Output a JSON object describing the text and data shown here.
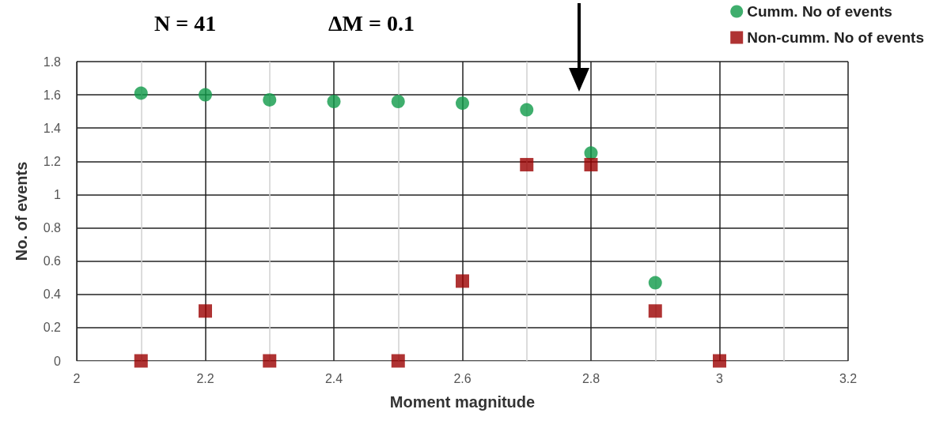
{
  "chart_data": {
    "type": "scatter",
    "xlabel": "Moment magnitude",
    "ylabel": "No. of events",
    "annotations": [
      "N = 41",
      "ΔM = 0.1"
    ],
    "x": [
      2.1,
      2.2,
      2.3,
      2.4,
      2.5,
      2.6,
      2.7,
      2.8,
      2.9,
      3.0
    ],
    "series": [
      {
        "name": "Cumm. No of events",
        "color": "#0f9a48",
        "marker": "circle",
        "values": [
          1.61,
          1.6,
          1.57,
          1.56,
          1.56,
          1.55,
          1.51,
          1.25,
          0.47,
          null
        ]
      },
      {
        "name": "Non-cumm. No of events",
        "color": "#9b0000",
        "marker": "square",
        "values": [
          0,
          0.3,
          0,
          null,
          0,
          0.48,
          1.18,
          1.18,
          0.3,
          0
        ]
      }
    ],
    "xlim": [
      2,
      3.2
    ],
    "xticks": [
      2,
      2.2,
      2.4,
      2.6,
      2.8,
      3,
      3.2
    ],
    "ylim": [
      0,
      1.8
    ],
    "yticks": [
      0,
      0.2,
      0.4,
      0.6,
      0.8,
      1,
      1.2,
      1.4,
      1.6,
      1.8
    ],
    "grid": true,
    "legend": "top right"
  }
}
